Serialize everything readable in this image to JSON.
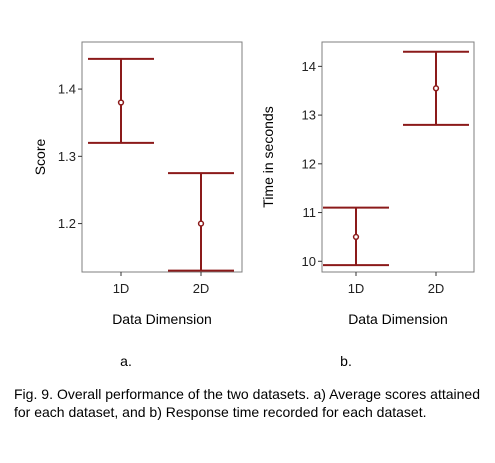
{
  "chart_data": [
    {
      "type": "errorbar",
      "panel_label": "a.",
      "categories": [
        "1D",
        "2D"
      ],
      "means": [
        1.38,
        1.2
      ],
      "lower": [
        1.32,
        1.13
      ],
      "upper": [
        1.445,
        1.275
      ],
      "yticks": [
        1.2,
        1.3,
        1.4
      ],
      "ytick_labels": [
        "1.2",
        "1.3",
        "1.4"
      ],
      "ylim": [
        1.128,
        1.47
      ],
      "xlabel": "Data Dimension",
      "ylabel": "Score",
      "grid": false,
      "color": "#8b1a1a"
    },
    {
      "type": "errorbar",
      "panel_label": "b.",
      "categories": [
        "1D",
        "2D"
      ],
      "means": [
        10.5,
        13.55
      ],
      "lower": [
        9.92,
        12.8
      ],
      "upper": [
        11.1,
        14.3
      ],
      "yticks": [
        10,
        11,
        12,
        13,
        14
      ],
      "ytick_labels": [
        "10",
        "11",
        "12",
        "13",
        "14"
      ],
      "ylim": [
        9.78,
        14.5
      ],
      "xlabel": "Data Dimension",
      "ylabel": "Time in seconds",
      "grid": false,
      "color": "#8b1a1a"
    }
  ],
  "caption": "Fig. 9. Overall performance of the two datasets. a) Average scores attained for each dataset, and b) Response time recorded for each dataset."
}
